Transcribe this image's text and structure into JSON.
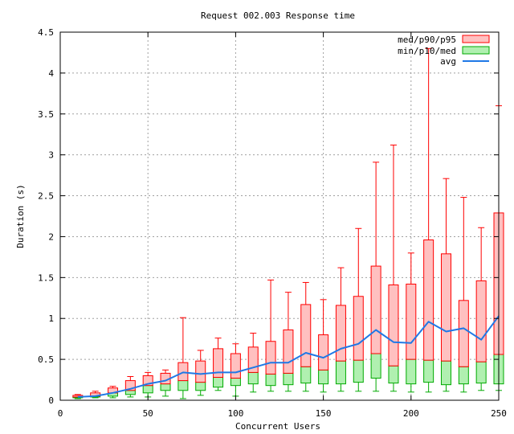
{
  "chart_data": {
    "type": "box",
    "title": "Request 002.003 Response time",
    "xlabel": "Concurrent Users",
    "ylabel": "Duration (s)",
    "xlim": [
      0,
      250
    ],
    "ylim": [
      0,
      4.5
    ],
    "x_ticks": [
      "0",
      "50",
      "100",
      "150",
      "200",
      "250"
    ],
    "y_ticks": [
      "0",
      "0.5",
      "1",
      "1.5",
      "2",
      "2.5",
      "3",
      "3.5",
      "4",
      "4.5"
    ],
    "x_tick_values": [
      0,
      50,
      100,
      150,
      200,
      250
    ],
    "y_tick_values": [
      0,
      0.5,
      1,
      1.5,
      2,
      2.5,
      3,
      3.5,
      4,
      4.5
    ],
    "grid": true,
    "legend": {
      "position": "top-right",
      "entries": [
        {
          "label": "med/p90/p95",
          "color": "#ff0000",
          "fill": "#ffc0c0"
        },
        {
          "label": "min/p10/med",
          "color": "#00aa00",
          "fill": "#b0f0b0"
        },
        {
          "label": "avg",
          "color": "#1f78e6"
        }
      ]
    },
    "series": [
      {
        "x": 10,
        "min": 0.02,
        "p10": 0.03,
        "med": 0.04,
        "p90": 0.06,
        "p95": 0.07,
        "max": 0.07,
        "avg": 0.04
      },
      {
        "x": 20,
        "min": 0.03,
        "p10": 0.04,
        "med": 0.05,
        "p90": 0.09,
        "p95": 0.11,
        "max": 0.11,
        "avg": 0.05
      },
      {
        "x": 30,
        "min": 0.03,
        "p10": 0.05,
        "med": 0.09,
        "p90": 0.15,
        "p95": 0.17,
        "max": 0.17,
        "avg": 0.09
      },
      {
        "x": 40,
        "min": 0.04,
        "p10": 0.07,
        "med": 0.12,
        "p90": 0.24,
        "p95": 0.29,
        "max": 0.29,
        "avg": 0.14
      },
      {
        "x": 50,
        "min": 0.04,
        "p10": 0.09,
        "med": 0.18,
        "p90": 0.3,
        "p95": 0.34,
        "max": 0.34,
        "avg": 0.2
      },
      {
        "x": 60,
        "min": 0.05,
        "p10": 0.12,
        "med": 0.2,
        "p90": 0.33,
        "p95": 0.37,
        "max": 0.37,
        "avg": 0.24
      },
      {
        "x": 70,
        "min": 0.02,
        "p10": 0.12,
        "med": 0.24,
        "p90": 0.46,
        "p95": 1.01,
        "max": 1.01,
        "avg": 0.34
      },
      {
        "x": 80,
        "min": 0.06,
        "p10": 0.12,
        "med": 0.22,
        "p90": 0.48,
        "p95": 0.61,
        "max": 0.61,
        "avg": 0.32
      },
      {
        "x": 90,
        "min": 0.12,
        "p10": 0.16,
        "med": 0.28,
        "p90": 0.63,
        "p95": 0.76,
        "max": 0.76,
        "avg": 0.34
      },
      {
        "x": 100,
        "min": 0.05,
        "p10": 0.18,
        "med": 0.27,
        "p90": 0.57,
        "p95": 0.69,
        "max": 0.69,
        "avg": 0.34
      },
      {
        "x": 110,
        "min": 0.1,
        "p10": 0.2,
        "med": 0.34,
        "p90": 0.65,
        "p95": 0.82,
        "max": 0.82,
        "avg": 0.4
      },
      {
        "x": 120,
        "min": 0.11,
        "p10": 0.18,
        "med": 0.32,
        "p90": 0.72,
        "p95": 1.47,
        "max": 1.47,
        "avg": 0.46
      },
      {
        "x": 130,
        "min": 0.11,
        "p10": 0.19,
        "med": 0.33,
        "p90": 0.86,
        "p95": 1.32,
        "max": 1.32,
        "avg": 0.46
      },
      {
        "x": 140,
        "min": 0.11,
        "p10": 0.21,
        "med": 0.41,
        "p90": 1.17,
        "p95": 1.44,
        "max": 1.44,
        "avg": 0.58
      },
      {
        "x": 150,
        "min": 0.1,
        "p10": 0.2,
        "med": 0.37,
        "p90": 0.8,
        "p95": 1.23,
        "max": 1.23,
        "avg": 0.52
      },
      {
        "x": 160,
        "min": 0.11,
        "p10": 0.2,
        "med": 0.48,
        "p90": 1.16,
        "p95": 1.62,
        "max": 1.62,
        "avg": 0.63
      },
      {
        "x": 170,
        "min": 0.11,
        "p10": 0.22,
        "med": 0.49,
        "p90": 1.27,
        "p95": 2.1,
        "max": 2.1,
        "avg": 0.69
      },
      {
        "x": 180,
        "min": 0.11,
        "p10": 0.27,
        "med": 0.57,
        "p90": 1.64,
        "p95": 2.91,
        "max": 2.91,
        "avg": 0.86
      },
      {
        "x": 190,
        "min": 0.11,
        "p10": 0.21,
        "med": 0.42,
        "p90": 1.41,
        "p95": 3.12,
        "max": 3.12,
        "avg": 0.71
      },
      {
        "x": 200,
        "min": 0.1,
        "p10": 0.2,
        "med": 0.5,
        "p90": 1.42,
        "p95": 1.8,
        "max": 1.8,
        "avg": 0.7
      },
      {
        "x": 210,
        "min": 0.1,
        "p10": 0.22,
        "med": 0.49,
        "p90": 1.96,
        "p95": 4.3,
        "max": 4.3,
        "avg": 0.96
      },
      {
        "x": 220,
        "min": 0.11,
        "p10": 0.19,
        "med": 0.48,
        "p90": 1.79,
        "p95": 2.71,
        "max": 2.71,
        "avg": 0.84
      },
      {
        "x": 230,
        "min": 0.1,
        "p10": 0.2,
        "med": 0.41,
        "p90": 1.22,
        "p95": 2.48,
        "max": 2.48,
        "avg": 0.88
      },
      {
        "x": 240,
        "min": 0.12,
        "p10": 0.21,
        "med": 0.47,
        "p90": 1.46,
        "p95": 2.11,
        "max": 2.11,
        "avg": 0.74
      },
      {
        "x": 250,
        "min": 0.12,
        "p10": 0.2,
        "med": 0.56,
        "p90": 2.29,
        "p95": 3.6,
        "max": 3.6,
        "avg": 1.03
      }
    ]
  }
}
